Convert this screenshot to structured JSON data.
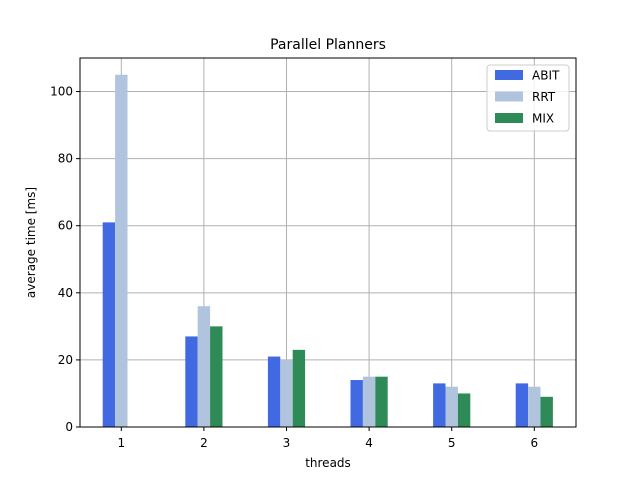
{
  "chart_data": {
    "type": "bar",
    "title": "Parallel Planners",
    "xlabel": "threads",
    "ylabel": "average time [ms]",
    "categories": [
      "1",
      "2",
      "3",
      "4",
      "5",
      "6"
    ],
    "ylim": [
      0,
      110
    ],
    "yticks": [
      0,
      20,
      40,
      60,
      80,
      100
    ],
    "grid": true,
    "legend_position": "top-right",
    "series": [
      {
        "name": "ABIT",
        "color": "#4169e1",
        "values": [
          61,
          27,
          21,
          14,
          13,
          13
        ]
      },
      {
        "name": "RRT",
        "color": "#b0c4de",
        "values": [
          105,
          36,
          20,
          15,
          12,
          12
        ]
      },
      {
        "name": "MIX",
        "color": "#2e8b57",
        "values": [
          null,
          30,
          23,
          15,
          10,
          9
        ]
      }
    ]
  }
}
